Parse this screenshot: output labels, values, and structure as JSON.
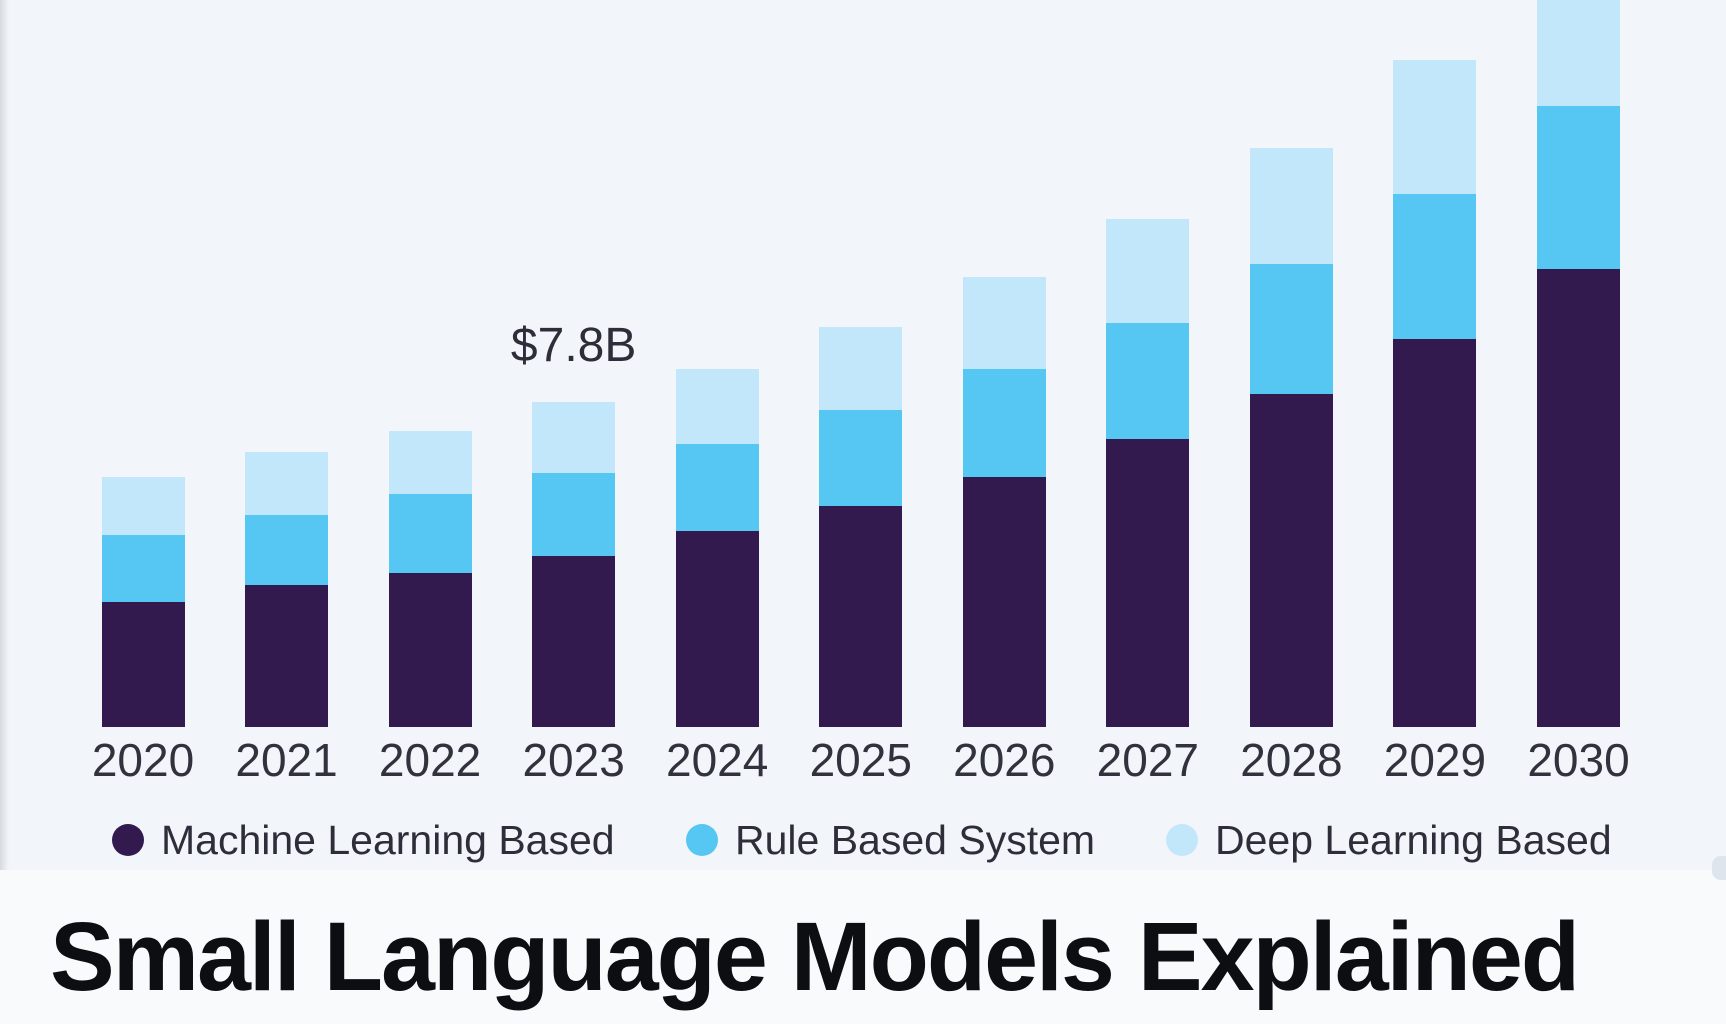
{
  "chart_data": {
    "type": "bar",
    "stacked": true,
    "categories": [
      "2020",
      "2021",
      "2022",
      "2023",
      "2024",
      "2025",
      "2026",
      "2027",
      "2028",
      "2029",
      "2030"
    ],
    "series": [
      {
        "name": "Machine Learning Based",
        "color": "#331a4e",
        "values": [
          3.0,
          3.4,
          3.7,
          4.1,
          4.7,
          5.3,
          6.0,
          6.9,
          8.0,
          9.3,
          11.0
        ]
      },
      {
        "name": "Rule Based System",
        "color": "#56c7f2",
        "values": [
          1.6,
          1.7,
          1.9,
          2.0,
          2.1,
          2.3,
          2.6,
          2.8,
          3.1,
          3.5,
          3.9
        ]
      },
      {
        "name": "Deep Learning Based",
        "color": "#c3e7fa",
        "values": [
          1.4,
          1.5,
          1.5,
          1.7,
          1.8,
          2.0,
          2.2,
          2.5,
          2.8,
          3.2,
          3.6
        ]
      }
    ],
    "totals": [
      6.0,
      6.6,
      7.1,
      7.8,
      8.6,
      9.6,
      10.8,
      12.2,
      13.9,
      16.0,
      18.5
    ],
    "unit": "USD billions",
    "annotations": [
      {
        "category": "2023",
        "text": "$7.8B"
      }
    ],
    "xlabel": "",
    "ylabel": "",
    "grid": false,
    "axes_visible": false,
    "legend_position": "bottom",
    "tallest_bar_clipped_at_top": "2030"
  },
  "title_banner": {
    "text": "Small Language Models Explained"
  },
  "colors": {
    "chart_background": "#f2f6fa",
    "banner_background": "#f8fafb",
    "label_text": "#32323e",
    "title_text": "#0d0e12"
  }
}
